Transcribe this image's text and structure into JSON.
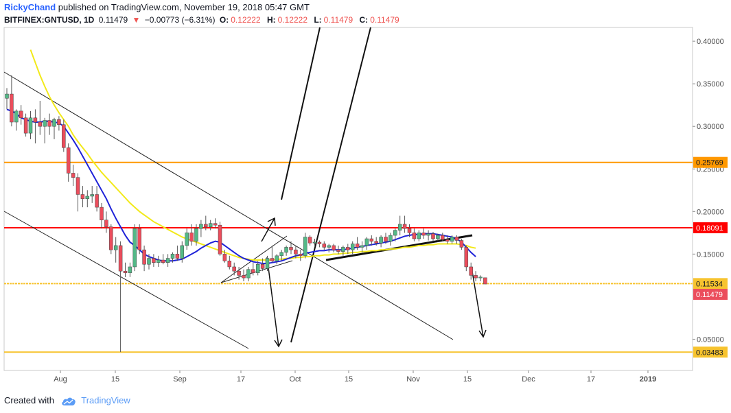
{
  "header": {
    "author": "RickyChand",
    "published_text": "published on TradingView.com, November 19, 2018 05:47 GMT",
    "symbol": "BITFINEX:GNTUSD, 1D",
    "last": "0.11479",
    "change": "−0.00773 (−6.31%)",
    "o_label": "O:",
    "o_value": "0.12222",
    "h_label": "H:",
    "h_value": "0.12222",
    "l_label": "L:",
    "l_value": "0.11479",
    "c_label": "C:",
    "c_value": "0.11479"
  },
  "footer": {
    "created_with": "Created with",
    "brand": "TradingView"
  },
  "chart_data": {
    "type": "candlestick",
    "x_ticks": [
      "Aug",
      "15",
      "Sep",
      "17",
      "Oct",
      "15",
      "Nov",
      "15",
      "Dec",
      "17",
      "2019"
    ],
    "y_ticks": [
      "0.40000",
      "0.35000",
      "0.30000",
      "0.25000",
      "0.20000",
      "0.15000",
      "0.05000"
    ],
    "y_range": [
      0.0,
      0.4
    ],
    "colors": {
      "up": "#53b987",
      "down": "#eb4d5c",
      "ma_fast": "#1e22d8",
      "ma_slow": "#f2e91a",
      "orange_line": "#ff9800",
      "red_line": "#ff0000",
      "gold_line": "#f7c32e"
    },
    "horizontal_levels": [
      {
        "label": "0.25769",
        "value": 0.25769,
        "color": "#ff9800"
      },
      {
        "label": "0.18091",
        "value": 0.18091,
        "color": "#ff0000"
      },
      {
        "label": "0.11534",
        "value": 0.11534,
        "color": "#f7c32e"
      },
      {
        "label": "0.03483",
        "value": 0.03483,
        "color": "#f7c32e"
      }
    ],
    "last_price_tag": {
      "label": "0.11479",
      "value": 0.11479,
      "color": "#eb4d5c"
    },
    "candles": [
      {
        "o": 0.333,
        "h": 0.345,
        "l": 0.32,
        "c": 0.338
      },
      {
        "o": 0.338,
        "h": 0.36,
        "l": 0.3,
        "c": 0.305
      },
      {
        "o": 0.305,
        "h": 0.32,
        "l": 0.295,
        "c": 0.318
      },
      {
        "o": 0.318,
        "h": 0.325,
        "l": 0.302,
        "c": 0.31
      },
      {
        "o": 0.31,
        "h": 0.315,
        "l": 0.288,
        "c": 0.292
      },
      {
        "o": 0.292,
        "h": 0.318,
        "l": 0.285,
        "c": 0.31
      },
      {
        "o": 0.31,
        "h": 0.32,
        "l": 0.28,
        "c": 0.305
      },
      {
        "o": 0.305,
        "h": 0.33,
        "l": 0.29,
        "c": 0.3
      },
      {
        "o": 0.3,
        "h": 0.31,
        "l": 0.28,
        "c": 0.307
      },
      {
        "o": 0.307,
        "h": 0.315,
        "l": 0.29,
        "c": 0.3
      },
      {
        "o": 0.3,
        "h": 0.31,
        "l": 0.285,
        "c": 0.308
      },
      {
        "o": 0.308,
        "h": 0.312,
        "l": 0.295,
        "c": 0.302
      },
      {
        "o": 0.302,
        "h": 0.308,
        "l": 0.27,
        "c": 0.275
      },
      {
        "o": 0.275,
        "h": 0.28,
        "l": 0.235,
        "c": 0.245
      },
      {
        "o": 0.245,
        "h": 0.255,
        "l": 0.23,
        "c": 0.24
      },
      {
        "o": 0.24,
        "h": 0.245,
        "l": 0.2,
        "c": 0.22
      },
      {
        "o": 0.22,
        "h": 0.23,
        "l": 0.205,
        "c": 0.215
      },
      {
        "o": 0.215,
        "h": 0.225,
        "l": 0.205,
        "c": 0.218
      },
      {
        "o": 0.218,
        "h": 0.23,
        "l": 0.21,
        "c": 0.22
      },
      {
        "o": 0.22,
        "h": 0.23,
        "l": 0.2,
        "c": 0.205
      },
      {
        "o": 0.205,
        "h": 0.21,
        "l": 0.18,
        "c": 0.19
      },
      {
        "o": 0.19,
        "h": 0.2,
        "l": 0.175,
        "c": 0.182
      },
      {
        "o": 0.182,
        "h": 0.185,
        "l": 0.15,
        "c": 0.155
      },
      {
        "o": 0.155,
        "h": 0.17,
        "l": 0.14,
        "c": 0.16
      },
      {
        "o": 0.16,
        "h": 0.165,
        "l": 0.035,
        "c": 0.13
      },
      {
        "o": 0.13,
        "h": 0.14,
        "l": 0.123,
        "c": 0.128
      },
      {
        "o": 0.128,
        "h": 0.14,
        "l": 0.123,
        "c": 0.135
      },
      {
        "o": 0.135,
        "h": 0.185,
        "l": 0.13,
        "c": 0.18
      },
      {
        "o": 0.18,
        "h": 0.185,
        "l": 0.15,
        "c": 0.155
      },
      {
        "o": 0.155,
        "h": 0.16,
        "l": 0.13,
        "c": 0.138
      },
      {
        "o": 0.138,
        "h": 0.15,
        "l": 0.132,
        "c": 0.145
      },
      {
        "o": 0.145,
        "h": 0.15,
        "l": 0.135,
        "c": 0.14
      },
      {
        "o": 0.14,
        "h": 0.148,
        "l": 0.135,
        "c": 0.143
      },
      {
        "o": 0.143,
        "h": 0.15,
        "l": 0.138,
        "c": 0.14
      },
      {
        "o": 0.14,
        "h": 0.15,
        "l": 0.135,
        "c": 0.145
      },
      {
        "o": 0.145,
        "h": 0.152,
        "l": 0.14,
        "c": 0.15
      },
      {
        "o": 0.15,
        "h": 0.16,
        "l": 0.142,
        "c": 0.145
      },
      {
        "o": 0.145,
        "h": 0.165,
        "l": 0.14,
        "c": 0.16
      },
      {
        "o": 0.16,
        "h": 0.18,
        "l": 0.155,
        "c": 0.175
      },
      {
        "o": 0.175,
        "h": 0.185,
        "l": 0.16,
        "c": 0.165
      },
      {
        "o": 0.165,
        "h": 0.185,
        "l": 0.16,
        "c": 0.18
      },
      {
        "o": 0.18,
        "h": 0.19,
        "l": 0.17,
        "c": 0.185
      },
      {
        "o": 0.185,
        "h": 0.195,
        "l": 0.178,
        "c": 0.182
      },
      {
        "o": 0.182,
        "h": 0.19,
        "l": 0.178,
        "c": 0.186
      },
      {
        "o": 0.186,
        "h": 0.192,
        "l": 0.18,
        "c": 0.184
      },
      {
        "o": 0.184,
        "h": 0.188,
        "l": 0.148,
        "c": 0.15
      },
      {
        "o": 0.15,
        "h": 0.155,
        "l": 0.14,
        "c": 0.142
      },
      {
        "o": 0.142,
        "h": 0.148,
        "l": 0.132,
        "c": 0.135
      },
      {
        "o": 0.135,
        "h": 0.14,
        "l": 0.125,
        "c": 0.13
      },
      {
        "o": 0.13,
        "h": 0.135,
        "l": 0.12,
        "c": 0.125
      },
      {
        "o": 0.125,
        "h": 0.132,
        "l": 0.118,
        "c": 0.122
      },
      {
        "o": 0.122,
        "h": 0.135,
        "l": 0.118,
        "c": 0.132
      },
      {
        "o": 0.132,
        "h": 0.14,
        "l": 0.125,
        "c": 0.128
      },
      {
        "o": 0.128,
        "h": 0.142,
        "l": 0.125,
        "c": 0.138
      },
      {
        "o": 0.138,
        "h": 0.145,
        "l": 0.13,
        "c": 0.133
      },
      {
        "o": 0.133,
        "h": 0.148,
        "l": 0.13,
        "c": 0.145
      },
      {
        "o": 0.145,
        "h": 0.16,
        "l": 0.14,
        "c": 0.142
      },
      {
        "o": 0.142,
        "h": 0.15,
        "l": 0.138,
        "c": 0.148
      },
      {
        "o": 0.148,
        "h": 0.155,
        "l": 0.142,
        "c": 0.152
      },
      {
        "o": 0.152,
        "h": 0.16,
        "l": 0.148,
        "c": 0.158
      },
      {
        "o": 0.158,
        "h": 0.165,
        "l": 0.15,
        "c": 0.155
      },
      {
        "o": 0.155,
        "h": 0.16,
        "l": 0.145,
        "c": 0.15
      },
      {
        "o": 0.15,
        "h": 0.155,
        "l": 0.142,
        "c": 0.148
      },
      {
        "o": 0.148,
        "h": 0.175,
        "l": 0.145,
        "c": 0.17
      },
      {
        "o": 0.17,
        "h": 0.172,
        "l": 0.16,
        "c": 0.163
      },
      {
        "o": 0.163,
        "h": 0.168,
        "l": 0.16,
        "c": 0.164
      },
      {
        "o": 0.164,
        "h": 0.166,
        "l": 0.158,
        "c": 0.162
      },
      {
        "o": 0.162,
        "h": 0.165,
        "l": 0.155,
        "c": 0.158
      },
      {
        "o": 0.158,
        "h": 0.162,
        "l": 0.152,
        "c": 0.16
      },
      {
        "o": 0.16,
        "h": 0.162,
        "l": 0.152,
        "c": 0.155
      },
      {
        "o": 0.155,
        "h": 0.16,
        "l": 0.15,
        "c": 0.153
      },
      {
        "o": 0.153,
        "h": 0.16,
        "l": 0.148,
        "c": 0.158
      },
      {
        "o": 0.158,
        "h": 0.162,
        "l": 0.15,
        "c": 0.155
      },
      {
        "o": 0.155,
        "h": 0.165,
        "l": 0.15,
        "c": 0.162
      },
      {
        "o": 0.162,
        "h": 0.17,
        "l": 0.155,
        "c": 0.158
      },
      {
        "o": 0.158,
        "h": 0.165,
        "l": 0.152,
        "c": 0.16
      },
      {
        "o": 0.16,
        "h": 0.17,
        "l": 0.155,
        "c": 0.168
      },
      {
        "o": 0.168,
        "h": 0.172,
        "l": 0.16,
        "c": 0.165
      },
      {
        "o": 0.165,
        "h": 0.17,
        "l": 0.16,
        "c": 0.163
      },
      {
        "o": 0.163,
        "h": 0.172,
        "l": 0.158,
        "c": 0.17
      },
      {
        "o": 0.17,
        "h": 0.175,
        "l": 0.162,
        "c": 0.165
      },
      {
        "o": 0.165,
        "h": 0.175,
        "l": 0.16,
        "c": 0.172
      },
      {
        "o": 0.172,
        "h": 0.18,
        "l": 0.165,
        "c": 0.178
      },
      {
        "o": 0.178,
        "h": 0.195,
        "l": 0.172,
        "c": 0.185
      },
      {
        "o": 0.185,
        "h": 0.195,
        "l": 0.175,
        "c": 0.18
      },
      {
        "o": 0.18,
        "h": 0.185,
        "l": 0.17,
        "c": 0.175
      },
      {
        "o": 0.175,
        "h": 0.18,
        "l": 0.165,
        "c": 0.168
      },
      {
        "o": 0.168,
        "h": 0.178,
        "l": 0.165,
        "c": 0.175
      },
      {
        "o": 0.175,
        "h": 0.18,
        "l": 0.168,
        "c": 0.172
      },
      {
        "o": 0.172,
        "h": 0.178,
        "l": 0.166,
        "c": 0.174
      },
      {
        "o": 0.174,
        "h": 0.176,
        "l": 0.165,
        "c": 0.168
      },
      {
        "o": 0.168,
        "h": 0.174,
        "l": 0.165,
        "c": 0.172
      },
      {
        "o": 0.172,
        "h": 0.175,
        "l": 0.165,
        "c": 0.167
      },
      {
        "o": 0.167,
        "h": 0.172,
        "l": 0.162,
        "c": 0.165
      },
      {
        "o": 0.165,
        "h": 0.172,
        "l": 0.162,
        "c": 0.17
      },
      {
        "o": 0.17,
        "h": 0.172,
        "l": 0.162,
        "c": 0.166
      },
      {
        "o": 0.166,
        "h": 0.168,
        "l": 0.155,
        "c": 0.158
      },
      {
        "o": 0.158,
        "h": 0.16,
        "l": 0.13,
        "c": 0.135
      },
      {
        "o": 0.135,
        "h": 0.14,
        "l": 0.12,
        "c": 0.125
      },
      {
        "o": 0.125,
        "h": 0.13,
        "l": 0.118,
        "c": 0.122
      },
      {
        "o": 0.122,
        "h": 0.125,
        "l": 0.118,
        "c": 0.123
      },
      {
        "o": 0.1222,
        "h": 0.1222,
        "l": 0.1148,
        "c": 0.1148
      }
    ],
    "ma_fast": [
      0.32,
      0.318,
      0.315,
      0.31,
      0.308,
      0.306,
      0.305,
      0.305,
      0.306,
      0.306,
      0.305,
      0.304,
      0.3,
      0.292,
      0.284,
      0.275,
      0.265,
      0.255,
      0.245,
      0.235,
      0.225,
      0.215,
      0.203,
      0.192,
      0.182,
      0.172,
      0.164,
      0.16,
      0.155,
      0.15,
      0.147,
      0.145,
      0.143,
      0.142,
      0.142,
      0.142,
      0.143,
      0.144,
      0.147,
      0.15,
      0.153,
      0.157,
      0.16,
      0.163,
      0.165,
      0.164,
      0.16,
      0.156,
      0.152,
      0.148,
      0.145,
      0.143,
      0.141,
      0.14,
      0.139,
      0.139,
      0.14,
      0.141,
      0.142,
      0.144,
      0.146,
      0.148,
      0.149,
      0.151,
      0.152,
      0.153,
      0.154,
      0.154,
      0.155,
      0.155,
      0.155,
      0.155,
      0.156,
      0.157,
      0.158,
      0.159,
      0.16,
      0.161,
      0.162,
      0.163,
      0.164,
      0.165,
      0.167,
      0.169,
      0.171,
      0.172,
      0.173,
      0.173,
      0.174,
      0.174,
      0.174,
      0.173,
      0.172,
      0.171,
      0.17,
      0.168,
      0.164,
      0.158,
      0.152,
      0.147
    ],
    "ma_slow": [
      null,
      null,
      null,
      null,
      null,
      0.39,
      0.375,
      0.36,
      0.347,
      0.335,
      0.325,
      0.316,
      0.308,
      0.3,
      0.29,
      0.282,
      0.275,
      0.268,
      0.26,
      0.253,
      0.246,
      0.24,
      0.234,
      0.228,
      0.222,
      0.216,
      0.21,
      0.205,
      0.2,
      0.196,
      0.192,
      0.188,
      0.185,
      0.182,
      0.179,
      0.176,
      0.173,
      0.17,
      0.168,
      0.166,
      0.164,
      0.162,
      0.16,
      0.158,
      0.156,
      0.154,
      0.152,
      0.15,
      0.148,
      0.146,
      0.145,
      0.144,
      0.143,
      0.143,
      0.143,
      0.143,
      0.143,
      0.144,
      0.144,
      0.145,
      0.145,
      0.146,
      0.146,
      0.147,
      0.147,
      0.148,
      0.148,
      0.149,
      0.149,
      0.15,
      0.15,
      0.151,
      0.151,
      0.152,
      0.152,
      0.153,
      0.153,
      0.154,
      0.154,
      0.155,
      0.155,
      0.156,
      0.156,
      0.157,
      0.158,
      0.158,
      0.159,
      0.16,
      0.16,
      0.161,
      0.161,
      0.162,
      0.162,
      0.162,
      0.162,
      0.162,
      0.161,
      0.16,
      0.158,
      0.157
    ]
  }
}
